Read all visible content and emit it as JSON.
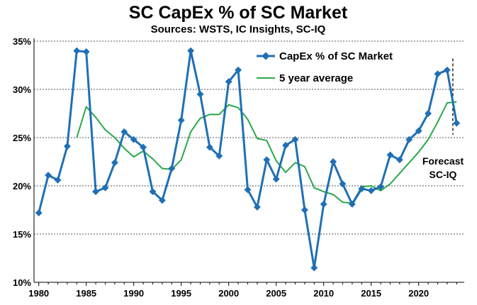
{
  "chart_data": {
    "type": "line",
    "title": "SC CapEx % of SC Market",
    "subtitle": "Sources: WSTS, IC Insights, SC-IQ",
    "xlabel": "",
    "ylabel": "",
    "xlim": [
      1979.5,
      2024.8
    ],
    "ylim": [
      10,
      35
    ],
    "x_ticks": [
      "1980",
      "1985",
      "1990",
      "1995",
      "2000",
      "2005",
      "2010",
      "2015",
      "2020"
    ],
    "x_tick_values": [
      1980,
      1985,
      1990,
      1995,
      2000,
      2005,
      2010,
      2015,
      2020
    ],
    "y_ticks": [
      "10%",
      "15%",
      "20%",
      "25%",
      "30%",
      "35%"
    ],
    "y_tick_values": [
      10,
      15,
      20,
      25,
      30,
      35
    ],
    "grid": "horizontal dashed",
    "legend_position": "top-right",
    "series": [
      {
        "name": "CapEx % of SC Market",
        "color": "#1f6fb5",
        "marker": "diamond",
        "x": [
          1980,
          1981,
          1982,
          1983,
          1984,
          1985,
          1986,
          1987,
          1988,
          1989,
          1990,
          1991,
          1992,
          1993,
          1994,
          1995,
          1996,
          1997,
          1998,
          1999,
          2000,
          2001,
          2002,
          2003,
          2004,
          2005,
          2006,
          2007,
          2008,
          2009,
          2010,
          2011,
          2012,
          2013,
          2014,
          2015,
          2016,
          2017,
          2018,
          2019,
          2020,
          2021,
          2022,
          2023,
          2024
        ],
        "values": [
          17.2,
          21.1,
          20.6,
          24.1,
          34.0,
          33.9,
          19.4,
          19.8,
          22.4,
          25.6,
          24.8,
          24.0,
          19.4,
          18.5,
          21.8,
          26.8,
          34.0,
          29.5,
          24.0,
          23.1,
          30.8,
          32.0,
          19.6,
          17.8,
          22.7,
          20.7,
          24.2,
          24.8,
          17.5,
          11.5,
          18.1,
          22.5,
          20.2,
          18.1,
          19.7,
          19.5,
          19.9,
          23.2,
          22.7,
          24.8,
          25.7,
          27.5,
          31.6,
          32.0,
          26.5
        ]
      },
      {
        "name": "5 year average",
        "color": "#2aa84a",
        "x": [
          1984,
          1985,
          1986,
          1987,
          1988,
          1989,
          1990,
          1991,
          1992,
          1993,
          1994,
          1995,
          1996,
          1997,
          1998,
          1999,
          2000,
          2001,
          2002,
          2003,
          2004,
          2005,
          2006,
          2007,
          2008,
          2009,
          2010,
          2011,
          2012,
          2013,
          2014,
          2015,
          2016,
          2017,
          2018,
          2019,
          2020,
          2021,
          2022,
          2023,
          2024
        ],
        "values": [
          25.0,
          28.2,
          27.1,
          25.8,
          25.0,
          23.9,
          23.0,
          23.6,
          22.8,
          21.8,
          21.7,
          22.7,
          25.6,
          27.0,
          27.4,
          27.4,
          28.4,
          28.1,
          26.9,
          24.9,
          24.7,
          22.6,
          21.4,
          22.4,
          22.0,
          19.8,
          19.4,
          19.1,
          18.3,
          18.2,
          19.9,
          20.0,
          19.5,
          20.2,
          21.3,
          22.4,
          23.5,
          24.8,
          26.6,
          28.6,
          28.7
        ]
      }
    ],
    "annotations": [
      {
        "text_line1": "Forecast",
        "text_line2": "SC-IQ"
      }
    ]
  }
}
